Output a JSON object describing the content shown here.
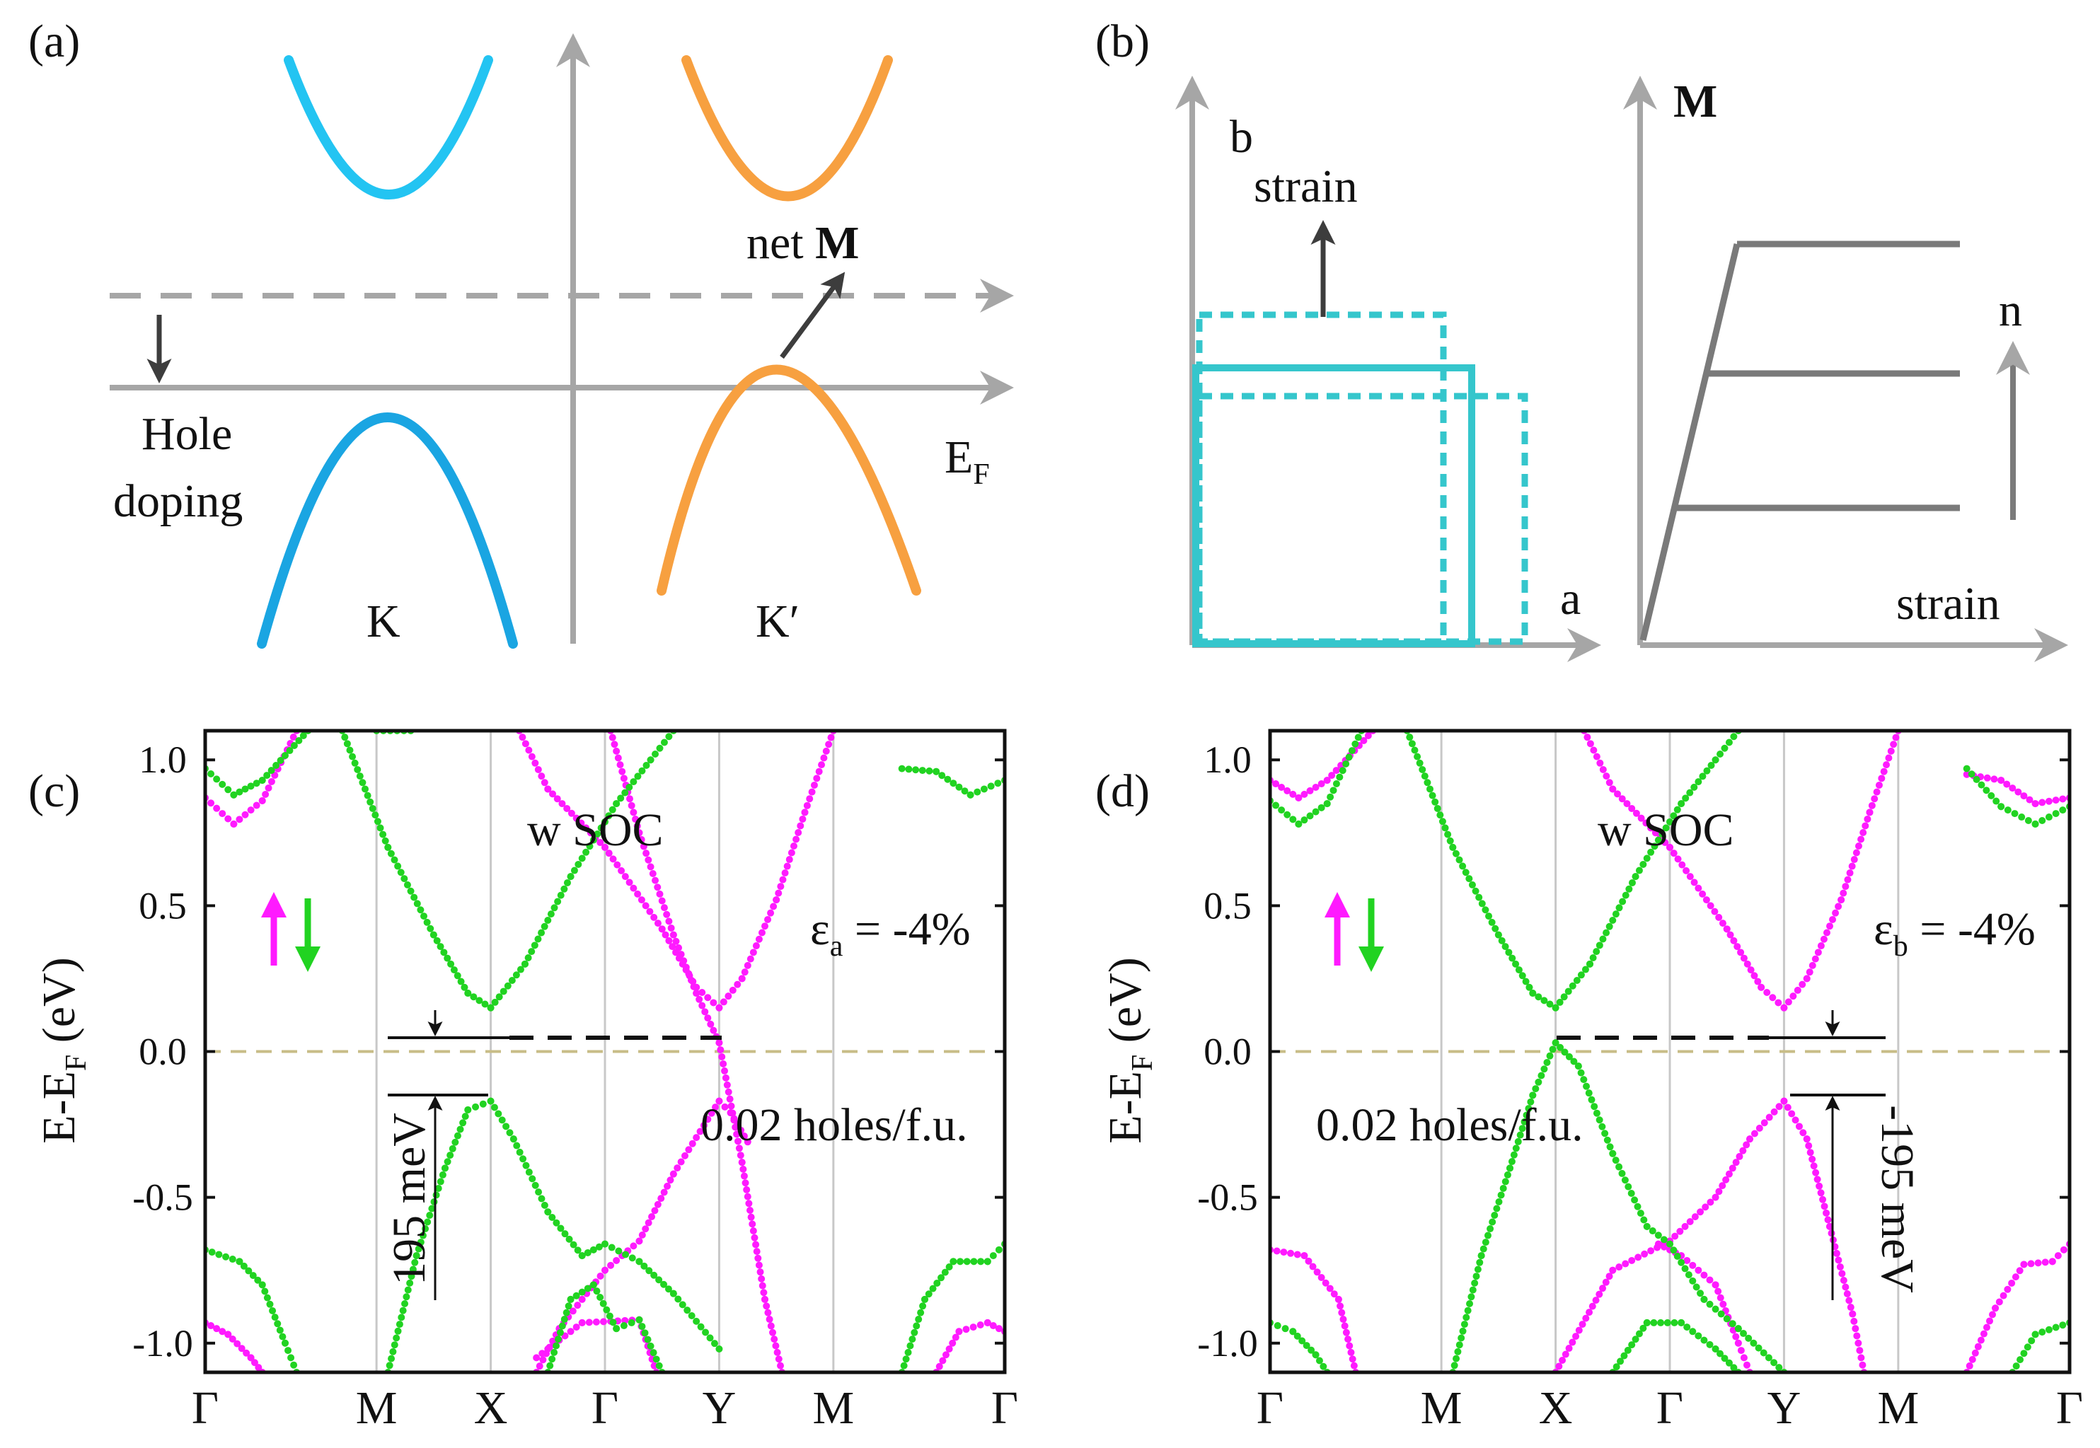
{
  "panels": {
    "a": {
      "tag": "(a)",
      "net_m_prefix": "net ",
      "net_m_symbol": "M",
      "hole_line1": "Hole",
      "hole_line2": "doping",
      "ef_main": "E",
      "ef_sub": "F",
      "valley_k": "K",
      "valley_kp": "K′",
      "colors": {
        "k_cb": "#23c4f2",
        "k_vb": "#1aa5e2",
        "kp": "#f7a040",
        "axis": "#a6a6a6",
        "arrow": "#3d3d3d"
      }
    },
    "b": {
      "tag": "(b)",
      "axis_b": "b",
      "axis_a": "a",
      "strain_up": "strain",
      "strain_x": "strain",
      "m_label": "M",
      "n_label": "n",
      "colors": {
        "cell": "#35c6cc",
        "curve": "#7a7a7a",
        "axis": "#a6a6a6"
      }
    }
  },
  "chart_data": [
    {
      "type": "line",
      "panel_tag": "(c)",
      "ylabel_main": "E-E",
      "ylabel_sub": "F",
      "ylabel_unit": " (eV)",
      "ylim": [
        -1.1,
        1.1
      ],
      "yticks": [
        1.0,
        0.5,
        0.0,
        -0.5,
        -1.0
      ],
      "ytick_labels": [
        "1.0",
        "0.5",
        "0.0",
        "-0.5",
        "-1.0"
      ],
      "kpoints": [
        "Γ",
        "M",
        "X",
        "Γ",
        "Y",
        "M",
        "Γ"
      ],
      "kpos": [
        0,
        1.5,
        2.5,
        3.5,
        4.5,
        5.5,
        7
      ],
      "soc_label": "w SOC",
      "strain_sym": "ε",
      "strain_sub": "a",
      "strain_value": " = -4%",
      "holes_text": "0.02 holes/f.u.",
      "gap_text": "195 meV",
      "spin_colors": {
        "up": "#ff1aff",
        "down": "#21d321"
      },
      "fermi_color": "#c8bd87",
      "bands": {
        "up": [
          [
            [
              0,
              0.87
            ],
            [
              0.25,
              0.78
            ],
            [
              0.5,
              0.86
            ],
            [
              0.8,
              1.1
            ]
          ],
          [
            [
              2.75,
              1.1
            ],
            [
              3.0,
              0.9
            ],
            [
              3.5,
              0.7
            ],
            [
              4.0,
              0.42
            ],
            [
              4.3,
              0.22
            ],
            [
              4.5,
              0.15
            ],
            [
              4.7,
              0.25
            ],
            [
              5.0,
              0.52
            ],
            [
              5.25,
              0.82
            ],
            [
              5.5,
              1.1
            ]
          ],
          [
            [
              3.55,
              1.1
            ],
            [
              3.8,
              0.75
            ],
            [
              4.1,
              0.4
            ],
            [
              4.3,
              0.2
            ],
            [
              4.5,
              0.03
            ],
            [
              4.7,
              -0.38
            ],
            [
              4.9,
              -0.85
            ],
            [
              5.05,
              -1.1
            ]
          ],
          [
            [
              2.9,
              -1.1
            ],
            [
              3.1,
              -0.95
            ],
            [
              3.5,
              -0.75
            ],
            [
              3.8,
              -0.65
            ],
            [
              4.1,
              -0.42
            ],
            [
              4.5,
              -0.17
            ],
            [
              4.6,
              -0.21
            ],
            [
              4.75,
              -0.31
            ]
          ],
          [
            [
              0,
              -0.93
            ],
            [
              0.2,
              -0.97
            ],
            [
              0.4,
              -1.05
            ],
            [
              0.5,
              -1.1
            ]
          ],
          [
            [
              2.9,
              -1.05
            ],
            [
              3.3,
              -0.93
            ],
            [
              3.8,
              -0.92
            ],
            [
              3.95,
              -1.1
            ]
          ],
          [
            [
              6.4,
              -1.1
            ],
            [
              6.6,
              -0.96
            ],
            [
              6.85,
              -0.93
            ],
            [
              7,
              -0.96
            ]
          ]
        ],
        "down": [
          [
            [
              0,
              0.97
            ],
            [
              0.25,
              0.88
            ],
            [
              0.5,
              0.93
            ],
            [
              0.9,
              1.1
            ]
          ],
          [
            [
              1.2,
              1.1
            ],
            [
              1.6,
              0.7
            ],
            [
              2.0,
              0.4
            ],
            [
              2.3,
              0.2
            ],
            [
              2.5,
              0.15
            ],
            [
              2.8,
              0.3
            ],
            [
              3.2,
              0.6
            ],
            [
              3.6,
              0.85
            ],
            [
              3.9,
              1.0
            ],
            [
              4.1,
              1.1
            ]
          ],
          [
            [
              1.6,
              -1.1
            ],
            [
              1.85,
              -0.7
            ],
            [
              2.1,
              -0.4
            ],
            [
              2.3,
              -0.2
            ],
            [
              2.5,
              -0.17
            ],
            [
              2.7,
              -0.3
            ],
            [
              3.0,
              -0.55
            ],
            [
              3.3,
              -0.7
            ],
            [
              3.5,
              -0.66
            ],
            [
              3.8,
              -0.72
            ],
            [
              4.1,
              -0.83
            ],
            [
              4.5,
              -1.02
            ]
          ],
          [
            [
              0,
              -0.68
            ],
            [
              0.3,
              -0.72
            ],
            [
              0.5,
              -0.8
            ],
            [
              0.7,
              -1.0
            ],
            [
              0.8,
              -1.1
            ]
          ],
          [
            [
              3.0,
              -1.1
            ],
            [
              3.2,
              -0.85
            ],
            [
              3.4,
              -0.8
            ],
            [
              3.6,
              -0.95
            ],
            [
              3.8,
              -0.92
            ],
            [
              4.0,
              -1.1
            ]
          ],
          [
            [
              6.1,
              -1.1
            ],
            [
              6.3,
              -0.85
            ],
            [
              6.55,
              -0.72
            ],
            [
              6.85,
              -0.72
            ],
            [
              7,
              -0.66
            ]
          ],
          [
            [
              6.1,
              0.97
            ],
            [
              6.4,
              0.96
            ],
            [
              6.7,
              0.88
            ],
            [
              7,
              0.93
            ]
          ],
          [
            [
              1.8,
              1.1
            ],
            [
              1.5,
              1.1
            ]
          ]
        ]
      }
    },
    {
      "type": "line",
      "panel_tag": "(d)",
      "ylabel_main": "E-E",
      "ylabel_sub": "F",
      "ylabel_unit": " (eV)",
      "ylim": [
        -1.1,
        1.1
      ],
      "yticks": [
        1.0,
        0.5,
        0.0,
        -0.5,
        -1.0
      ],
      "ytick_labels": [
        "1.0",
        "0.5",
        "0.0",
        "-0.5",
        "-1.0"
      ],
      "kpoints": [
        "Γ",
        "M",
        "X",
        "Γ",
        "Y",
        "M",
        "Γ"
      ],
      "kpos": [
        0,
        1.5,
        2.5,
        3.5,
        4.5,
        5.5,
        7
      ],
      "soc_label": "w SOC",
      "strain_sym": "ε",
      "strain_sub": "b",
      "strain_value": " = -4%",
      "holes_text": "0.02 holes/f.u.",
      "gap_text": "-195 meV",
      "spin_colors": {
        "up": "#ff1aff",
        "down": "#21d321"
      },
      "fermi_color": "#c8bd87",
      "bands": {
        "up": [
          [
            [
              0,
              0.93
            ],
            [
              0.25,
              0.87
            ],
            [
              0.5,
              0.93
            ],
            [
              0.9,
              1.1
            ]
          ],
          [
            [
              2.75,
              1.1
            ],
            [
              3.0,
              0.9
            ],
            [
              3.5,
              0.7
            ],
            [
              4.0,
              0.42
            ],
            [
              4.3,
              0.22
            ],
            [
              4.5,
              0.15
            ],
            [
              4.7,
              0.25
            ],
            [
              5.0,
              0.52
            ],
            [
              5.25,
              0.82
            ],
            [
              5.5,
              1.1
            ]
          ],
          [
            [
              2.5,
              -1.1
            ],
            [
              3.0,
              -0.75
            ],
            [
              3.5,
              -0.65
            ],
            [
              3.9,
              -0.5
            ],
            [
              4.2,
              -0.3
            ],
            [
              4.5,
              -0.17
            ],
            [
              4.7,
              -0.3
            ],
            [
              4.9,
              -0.6
            ],
            [
              5.1,
              -0.9
            ],
            [
              5.2,
              -1.1
            ]
          ],
          [
            [
              0,
              -0.68
            ],
            [
              0.3,
              -0.7
            ],
            [
              0.6,
              -0.85
            ],
            [
              0.75,
              -1.1
            ]
          ],
          [
            [
              3.4,
              -0.66
            ],
            [
              3.6,
              -0.7
            ],
            [
              3.9,
              -0.8
            ],
            [
              4.1,
              -1.0
            ],
            [
              4.2,
              -1.1
            ]
          ],
          [
            [
              6.1,
              -1.1
            ],
            [
              6.35,
              -0.88
            ],
            [
              6.6,
              -0.73
            ],
            [
              6.85,
              -0.72
            ],
            [
              7,
              -0.66
            ]
          ],
          [
            [
              6.1,
              0.95
            ],
            [
              6.4,
              0.93
            ],
            [
              6.7,
              0.85
            ],
            [
              7,
              0.87
            ]
          ]
        ],
        "down": [
          [
            [
              0,
              0.86
            ],
            [
              0.25,
              0.78
            ],
            [
              0.5,
              0.85
            ],
            [
              0.8,
              1.1
            ]
          ],
          [
            [
              1.2,
              1.1
            ],
            [
              1.6,
              0.7
            ],
            [
              2.0,
              0.4
            ],
            [
              2.3,
              0.2
            ],
            [
              2.5,
              0.15
            ],
            [
              2.8,
              0.3
            ],
            [
              3.2,
              0.6
            ],
            [
              3.6,
              0.85
            ],
            [
              3.9,
              1.0
            ],
            [
              4.1,
              1.1
            ]
          ],
          [
            [
              1.6,
              -1.1
            ],
            [
              1.85,
              -0.7
            ],
            [
              2.1,
              -0.4
            ],
            [
              2.3,
              -0.15
            ],
            [
              2.5,
              0.03
            ],
            [
              2.7,
              -0.05
            ],
            [
              3.0,
              -0.35
            ],
            [
              3.3,
              -0.6
            ],
            [
              3.5,
              -0.66
            ],
            [
              3.8,
              -0.85
            ],
            [
              4.1,
              -0.95
            ],
            [
              4.5,
              -1.1
            ]
          ],
          [
            [
              0,
              -0.93
            ],
            [
              0.2,
              -0.96
            ],
            [
              0.4,
              -1.04
            ],
            [
              0.5,
              -1.1
            ]
          ],
          [
            [
              3.0,
              -1.1
            ],
            [
              3.3,
              -0.93
            ],
            [
              3.6,
              -0.93
            ],
            [
              3.9,
              -1.02
            ],
            [
              4.1,
              -1.1
            ]
          ],
          [
            [
              6.5,
              -1.1
            ],
            [
              6.7,
              -0.97
            ],
            [
              7,
              -0.93
            ]
          ],
          [
            [
              6.1,
              0.97
            ],
            [
              6.4,
              0.84
            ],
            [
              6.7,
              0.78
            ],
            [
              7,
              0.84
            ]
          ]
        ]
      }
    }
  ]
}
